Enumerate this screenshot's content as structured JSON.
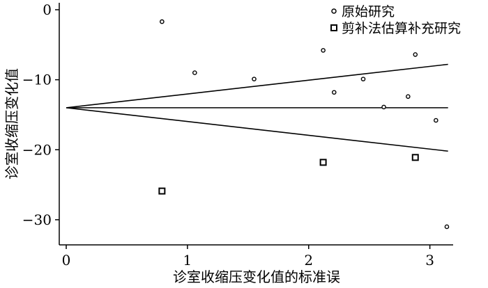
{
  "chart_data": {
    "type": "scatter",
    "title": "",
    "xlabel": "诊室收缩压变化值的标准误",
    "ylabel": "诊室收缩压变化值",
    "xlim": [
      0,
      3.15
    ],
    "ylim": [
      -32,
      0
    ],
    "x_ticks": [
      0,
      1,
      2,
      3
    ],
    "y_ticks": [
      0,
      -10,
      -20,
      -30
    ],
    "x_tick_labels": [
      "0",
      "1",
      "2",
      "3"
    ],
    "y_tick_labels": [
      "0",
      "−10",
      "−20",
      "−30"
    ],
    "grid": false,
    "legend_position": "top-right",
    "series": [
      {
        "name": "原始研究",
        "marker": "circle",
        "points": [
          [
            0.79,
            -1.7
          ],
          [
            1.06,
            -9.0
          ],
          [
            1.55,
            -9.9
          ],
          [
            2.12,
            -5.8
          ],
          [
            2.21,
            -11.8
          ],
          [
            2.45,
            -9.9
          ],
          [
            2.62,
            -13.9
          ],
          [
            2.82,
            -12.4
          ],
          [
            2.88,
            -6.4
          ],
          [
            3.05,
            -15.8
          ],
          [
            3.14,
            -31.0
          ]
        ]
      },
      {
        "name": "剪补法估算补充研究",
        "marker": "square",
        "points": [
          [
            0.79,
            -25.9
          ],
          [
            2.12,
            -21.8
          ],
          [
            2.88,
            -21.1
          ]
        ]
      }
    ],
    "reference_lines": {
      "pooled_estimate": -14.0,
      "funnel_apex_x": 0,
      "funnel_end_x": 3.15,
      "funnel_upper_end": -7.8,
      "funnel_lower_end": -20.2
    }
  }
}
